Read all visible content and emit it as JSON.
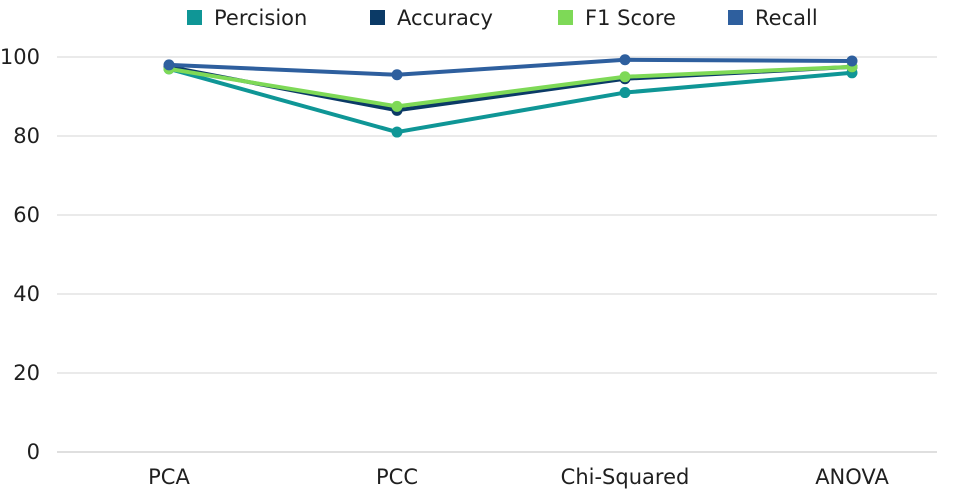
{
  "chart_data": {
    "type": "line",
    "categories": [
      "PCA",
      "PCC",
      "Chi-Squared",
      "ANOVA"
    ],
    "series": [
      {
        "name": "Percision",
        "color": "#0f9696",
        "values": [
          97,
          81,
          91,
          96
        ]
      },
      {
        "name": "Accuracy",
        "color": "#0b3a66",
        "values": [
          97.5,
          86.5,
          94.5,
          97.5
        ]
      },
      {
        "name": "F1 Score",
        "color": "#7ed957",
        "values": [
          97,
          87.5,
          95,
          97.5
        ]
      },
      {
        "name": "Recall",
        "color": "#2e5f9e",
        "values": [
          98,
          95.5,
          99.3,
          99
        ]
      }
    ],
    "draw_order": [
      "Percision",
      "Accuracy",
      "F1 Score",
      "Recall"
    ],
    "ylim": [
      0,
      100
    ],
    "yticks": [
      0,
      20,
      40,
      60,
      80,
      100
    ],
    "ytick_labels": [
      "0",
      "20",
      "40",
      "60",
      "80",
      "100"
    ],
    "title": "",
    "xlabel": "",
    "ylabel": "",
    "grid": true,
    "legend_position": "top"
  }
}
